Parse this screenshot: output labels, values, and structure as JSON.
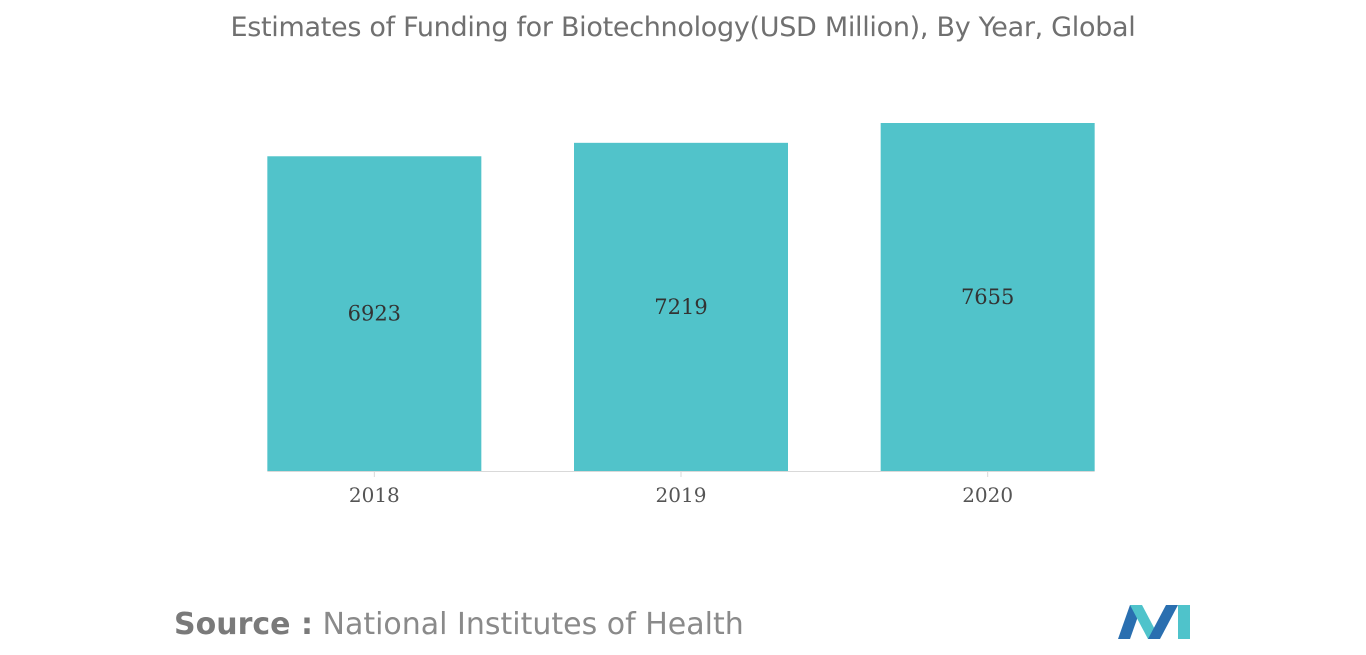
{
  "title": "Estimates of Funding for Biotechnology(USD Million), By Year, Global",
  "source": {
    "key": "Source :",
    "value": "National Institutes of Health"
  },
  "logo": {
    "icon": "mordor-intelligence-logo-icon",
    "colors": [
      "#2a6fb0",
      "#4fc3cb"
    ]
  },
  "colors": {
    "bar": "#51c3ca",
    "axis": "#d9d9d9"
  },
  "chart_data": {
    "type": "bar",
    "title": "Estimates of Funding for Biotechnology(USD Million), By Year, Global",
    "categories": [
      "2018",
      "2019",
      "2020"
    ],
    "values": [
      6923,
      7219,
      7655
    ],
    "data_labels": [
      "6923",
      "7219",
      "7655"
    ],
    "xlabel": "",
    "ylabel": "",
    "ylim": [
      0,
      7655
    ],
    "grid": false,
    "legend": "none"
  }
}
